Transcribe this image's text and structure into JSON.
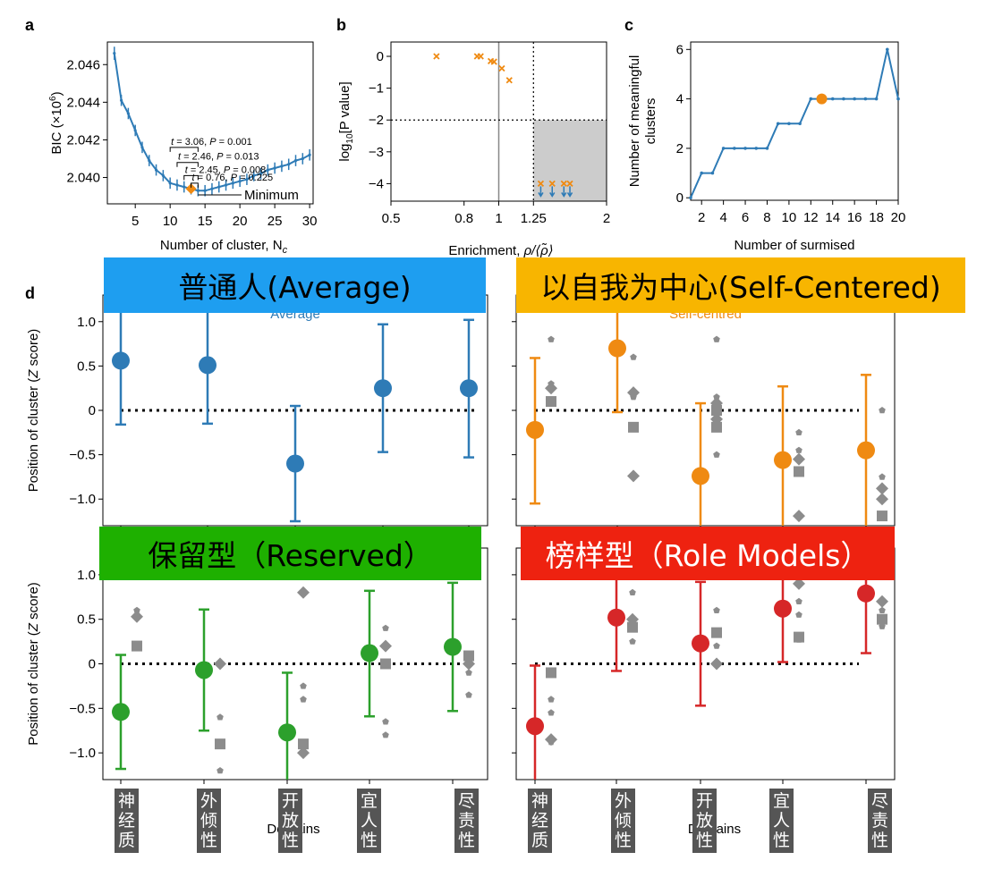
{
  "panel_letters": {
    "a": "a",
    "b": "b",
    "c": "c",
    "d": "d"
  },
  "chart_data": [
    {
      "id": "a",
      "type": "line",
      "xlabel": "Number of cluster, N",
      "xlabel_sub": "c",
      "ylabel": "BIC (×10",
      "ylabel_sup": "6",
      "ylabel_end": ")",
      "xlim": [
        1,
        30.5
      ],
      "ylim": [
        2.0386,
        2.0472
      ],
      "xticks": [
        5,
        10,
        15,
        20,
        25,
        30
      ],
      "yticks": [
        2.04,
        2.042,
        2.044,
        2.046
      ],
      "ytick_labels": [
        "2.040",
        "2.042",
        "2.044",
        "2.046"
      ],
      "series": [
        {
          "x": [
            2,
            3,
            4,
            5,
            6,
            7,
            8,
            9,
            10,
            11,
            12,
            13,
            14,
            15,
            16,
            17,
            18,
            19,
            20,
            21,
            22,
            23,
            24,
            25,
            26,
            27,
            28,
            29,
            30
          ],
          "y": [
            2.0466,
            2.0441,
            2.0434,
            2.0425,
            2.0416,
            2.0409,
            2.0404,
            2.0401,
            2.0397,
            2.0396,
            2.0395,
            2.0394,
            2.0393,
            2.0393,
            2.0394,
            2.0395,
            2.0396,
            2.0397,
            2.0398,
            2.0399,
            2.0401,
            2.0402,
            2.0404,
            2.0405,
            2.0406,
            2.0407,
            2.0409,
            2.041,
            2.0412
          ],
          "err": [
            0.00035,
            0.0003,
            0.0003,
            0.0003,
            0.0003,
            0.0003,
            0.0003,
            0.0003,
            0.0003,
            0.0003,
            0.0003,
            0.0003,
            0.0003,
            0.0003,
            0.0003,
            0.0003,
            0.0003,
            0.0003,
            0.0003,
            0.0003,
            0.0003,
            0.0003,
            0.0003,
            0.0003,
            0.0003,
            0.0003,
            0.0003,
            0.0003,
            0.0003
          ]
        }
      ],
      "highlight_point": {
        "x": 13,
        "y": 2.0394
      },
      "minimum_label": "Minimum",
      "minimum_x": 14,
      "annotations": [
        {
          "t": "3.06",
          "p": "0.001",
          "from": 10,
          "to": 14,
          "y": 2.0416
        },
        {
          "t": "2.46",
          "p": "0.013",
          "from": 11,
          "to": 14,
          "y": 2.0408
        },
        {
          "t": "2.45",
          "p": "0.008",
          "from": 12,
          "to": 14,
          "y": 2.0401
        },
        {
          "t": "0.76",
          "p": "0.225",
          "from": 13,
          "to": 14,
          "y": 2.0397
        }
      ]
    },
    {
      "id": "b",
      "type": "scatter",
      "xlabel": "Enrichment, ",
      "xlabel_math": "ρ/⟨ρ̃⟩",
      "ylabel": "log",
      "ylabel_sub": "10",
      "ylabel_end": "[P value]",
      "xscale": "log",
      "xlim": [
        0.5,
        2.0
      ],
      "ylim": [
        -4.55,
        0.45
      ],
      "xticks": [
        0.5,
        0.8,
        1,
        1.25,
        2
      ],
      "xtick_labels": [
        "0.5",
        "0.8",
        "1",
        "1.25",
        "2"
      ],
      "yticks": [
        0,
        -1,
        -2,
        -3,
        -4
      ],
      "ytick_labels": [
        "0",
        "−1",
        "−2",
        "−3",
        "−4"
      ],
      "threshold_x": 1.25,
      "threshold_y": -2,
      "reference_x": 1,
      "points": [
        {
          "x": 0.67,
          "y": 0.0
        },
        {
          "x": 0.87,
          "y": 0.0
        },
        {
          "x": 0.89,
          "y": 0.0
        },
        {
          "x": 0.95,
          "y": -0.15
        },
        {
          "x": 0.97,
          "y": -0.17
        },
        {
          "x": 1.02,
          "y": -0.38
        },
        {
          "x": 1.07,
          "y": -0.75
        },
        {
          "x": 1.31,
          "y": -4.0
        },
        {
          "x": 1.41,
          "y": -4.0
        },
        {
          "x": 1.52,
          "y": -4.0
        },
        {
          "x": 1.58,
          "y": -4.0
        }
      ]
    },
    {
      "id": "c",
      "type": "line",
      "xlabel": "Number of surmised",
      "ylabel_lines": [
        "Number of meaningful",
        "clusters"
      ],
      "xlim": [
        1,
        20
      ],
      "ylim": [
        -0.1,
        6.3
      ],
      "xticks": [
        2,
        4,
        6,
        8,
        10,
        12,
        14,
        16,
        18,
        20
      ],
      "xtick_labels": [
        "2",
        "4",
        "6",
        "8",
        "10",
        "12",
        "14",
        "16",
        "18",
        "20"
      ],
      "yticks": [
        0,
        2,
        4,
        6
      ],
      "ytick_labels": [
        "0",
        "2",
        "4",
        "6"
      ],
      "series": [
        {
          "x": [
            1,
            2,
            3,
            4,
            5,
            6,
            7,
            8,
            9,
            10,
            11,
            12,
            13,
            14,
            15,
            16,
            17,
            18,
            19,
            20
          ],
          "y": [
            0,
            1,
            1,
            2,
            2,
            2,
            2,
            2,
            3,
            3,
            3,
            4,
            4,
            4,
            4,
            4,
            4,
            4,
            6,
            4
          ]
        }
      ],
      "highlight_point": {
        "x": 13,
        "y": 4
      }
    },
    {
      "id": "d",
      "type": "scatter",
      "xlabel": "Domains",
      "ylabel": "Position of cluster (",
      "ylabel_italic": "Z",
      "ylabel_end": " score)",
      "ylim": [
        -1.3,
        1.3
      ],
      "yticks": [
        1.0,
        0.5,
        0,
        -0.5,
        -1.0
      ],
      "ytick_labels": [
        "1.0",
        "0.5",
        "0",
        "−0.5",
        "−1.0"
      ],
      "categories": [
        "神经质",
        "外倾性",
        "开放性",
        "宜人性",
        "尽责性"
      ],
      "subplots": [
        {
          "name": "普通人(Average)",
          "inner_label": "Average",
          "color": "#2e7bb6",
          "banner_color": "#1e9ef0",
          "banner_text_color": "#000000",
          "means": [
            0.56,
            0.51,
            -0.6,
            0.25,
            0.25
          ],
          "err_low": [
            -0.16,
            -0.15,
            -1.25,
            -0.47,
            -0.53
          ],
          "err_high": [
            1.3,
            1.3,
            0.05,
            0.97,
            1.02
          ],
          "others": []
        },
        {
          "name": "以自我为中心(Self-Centered)",
          "inner_label": "Self-centred",
          "color": "#ef8a12",
          "banner_color": "#f8b500",
          "banner_text_color": "#000000",
          "means": [
            -0.22,
            0.7,
            -0.74,
            -0.56,
            -0.45
          ],
          "err_low": [
            -1.05,
            -0.02,
            -1.3,
            -1.3,
            -1.3
          ],
          "err_high": [
            0.59,
            1.3,
            0.08,
            0.27,
            0.4
          ],
          "others": [
            [
              {
                "s": "p",
                "y": 0.8
              },
              {
                "s": "p",
                "y": 0.3
              },
              {
                "s": "d",
                "y": 0.25
              },
              {
                "s": "s",
                "y": 0.1
              }
            ],
            [
              {
                "s": "p",
                "y": 0.6
              },
              {
                "s": "d",
                "y": 0.2
              },
              {
                "s": "p",
                "y": 0.15
              },
              {
                "s": "s",
                "y": -0.19
              },
              {
                "s": "d",
                "y": -0.74
              }
            ],
            [
              {
                "s": "p",
                "y": 0.8
              },
              {
                "s": "p",
                "y": 0.15
              },
              {
                "s": "d",
                "y": 0.08
              },
              {
                "s": "s",
                "y": 0.0
              },
              {
                "s": "d",
                "y": -0.1
              },
              {
                "s": "s",
                "y": -0.19
              },
              {
                "s": "p",
                "y": -0.5
              }
            ],
            [
              {
                "s": "p",
                "y": -0.25
              },
              {
                "s": "p",
                "y": -0.45
              },
              {
                "s": "d",
                "y": -0.55
              },
              {
                "s": "s",
                "y": -0.69
              },
              {
                "s": "d",
                "y": -1.19
              }
            ],
            [
              {
                "s": "p",
                "y": 0.0
              },
              {
                "s": "p",
                "y": -0.75
              },
              {
                "s": "d",
                "y": -0.88
              },
              {
                "s": "d",
                "y": -1.0
              },
              {
                "s": "s",
                "y": -1.19
              }
            ]
          ]
        },
        {
          "name": "保留型（Reserved）",
          "inner_label": "",
          "color": "#2ca02c",
          "banner_color": "#1eb000",
          "banner_text_color": "#000000",
          "means": [
            -0.54,
            -0.07,
            -0.77,
            0.12,
            0.19
          ],
          "err_low": [
            -1.18,
            -0.75,
            -1.3,
            -0.59,
            -0.53
          ],
          "err_high": [
            0.1,
            0.61,
            -0.1,
            0.82,
            0.91
          ],
          "others": [
            [
              {
                "s": "p",
                "y": 1.0
              },
              {
                "s": "p",
                "y": 0.6
              },
              {
                "s": "d",
                "y": 0.53
              },
              {
                "s": "s",
                "y": 0.2
              }
            ],
            [
              {
                "s": "d",
                "y": 0.0
              },
              {
                "s": "p",
                "y": -0.6
              },
              {
                "s": "s",
                "y": -0.9
              },
              {
                "s": "p",
                "y": -1.2
              }
            ],
            [
              {
                "s": "d",
                "y": 0.8
              },
              {
                "s": "p",
                "y": -0.25
              },
              {
                "s": "p",
                "y": -0.4
              },
              {
                "s": "s",
                "y": -0.9
              },
              {
                "s": "d",
                "y": -1.0
              }
            ],
            [
              {
                "s": "p",
                "y": 0.4
              },
              {
                "s": "d",
                "y": 0.2
              },
              {
                "s": "s",
                "y": 0.0
              },
              {
                "s": "p",
                "y": -0.65
              },
              {
                "s": "p",
                "y": -0.8
              }
            ],
            [
              {
                "s": "s",
                "y": 0.09
              },
              {
                "s": "d",
                "y": 0.0
              },
              {
                "s": "p",
                "y": -0.1
              },
              {
                "s": "p",
                "y": -0.35
              }
            ]
          ]
        },
        {
          "name": "榜样型（Role Models）",
          "inner_label": "",
          "color": "#d62728",
          "banner_color": "#ee2210",
          "banner_text_color": "#ffffff",
          "means": [
            -0.7,
            0.52,
            0.23,
            0.62,
            0.79
          ],
          "err_low": [
            -1.3,
            -0.08,
            -0.47,
            0.02,
            0.12
          ],
          "err_high": [
            -0.02,
            1.3,
            0.92,
            1.3,
            1.3
          ],
          "others": [
            [
              {
                "s": "s",
                "y": -0.1
              },
              {
                "s": "p",
                "y": -0.4
              },
              {
                "s": "p",
                "y": -0.55
              },
              {
                "s": "d",
                "y": -0.85
              },
              {
                "s": "p",
                "y": -0.88
              }
            ],
            [
              {
                "s": "p",
                "y": 0.8
              },
              {
                "s": "d",
                "y": 0.5
              },
              {
                "s": "s",
                "y": 0.41
              },
              {
                "s": "p",
                "y": 0.25
              }
            ],
            [
              {
                "s": "p",
                "y": 0.6
              },
              {
                "s": "s",
                "y": 0.35
              },
              {
                "s": "p",
                "y": 0.2
              },
              {
                "s": "d",
                "y": 0.0
              }
            ],
            [
              {
                "s": "d",
                "y": 0.9
              },
              {
                "s": "p",
                "y": 0.7
              },
              {
                "s": "p",
                "y": 0.55
              },
              {
                "s": "s",
                "y": 0.3
              },
              {
                "s": "p",
                "y": 0.27
              }
            ],
            [
              {
                "s": "d",
                "y": 0.7
              },
              {
                "s": "p",
                "y": 0.6
              },
              {
                "s": "s",
                "y": 0.5
              },
              {
                "s": "p",
                "y": 0.42
              }
            ]
          ]
        }
      ]
    }
  ]
}
